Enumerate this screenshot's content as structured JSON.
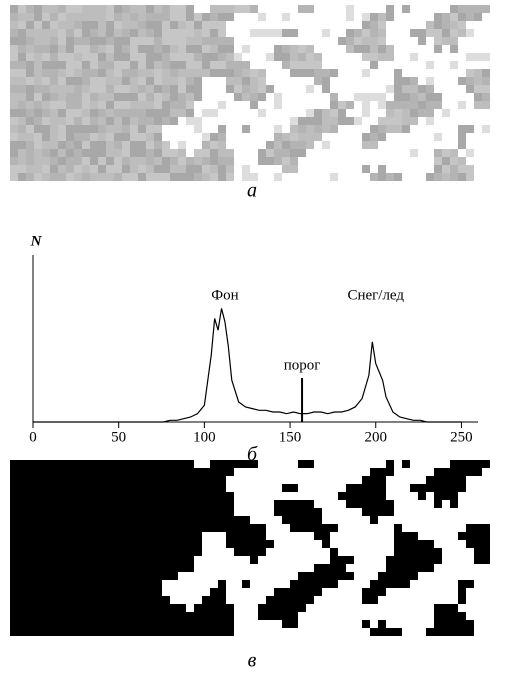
{
  "panel_labels": [
    "а",
    "б",
    "в"
  ],
  "chart_data": {
    "type": "line",
    "y_label": "N",
    "annotations": [
      {
        "text": "Фон",
        "x": 112
      },
      {
        "text": "Снег/лед",
        "x": 200
      },
      {
        "text": "порог",
        "x": 157
      }
    ],
    "threshold": 157,
    "x": [
      0,
      10,
      20,
      30,
      40,
      50,
      60,
      70,
      76,
      80,
      84,
      88,
      92,
      96,
      100,
      104,
      106,
      108,
      110,
      112,
      114,
      116,
      120,
      124,
      128,
      132,
      136,
      140,
      144,
      148,
      152,
      156,
      160,
      164,
      168,
      172,
      176,
      180,
      184,
      188,
      192,
      196,
      198,
      200,
      202,
      204,
      206,
      210,
      214,
      218,
      222,
      226,
      230,
      240,
      250
    ],
    "values": [
      0,
      0,
      0,
      0,
      0,
      0,
      0,
      0,
      0,
      1,
      1,
      2,
      3,
      5,
      10,
      40,
      62,
      55,
      68,
      60,
      45,
      25,
      12,
      9,
      8,
      7,
      7,
      6,
      6,
      5,
      6,
      5,
      5,
      6,
      6,
      5,
      6,
      6,
      7,
      9,
      14,
      28,
      48,
      35,
      30,
      25,
      15,
      6,
      3,
      2,
      1,
      1,
      0,
      0,
      0
    ],
    "xlim": [
      0,
      255
    ],
    "xticks": [
      0,
      50,
      100,
      150,
      200,
      250
    ],
    "ylim": [
      0,
      100
    ]
  }
}
